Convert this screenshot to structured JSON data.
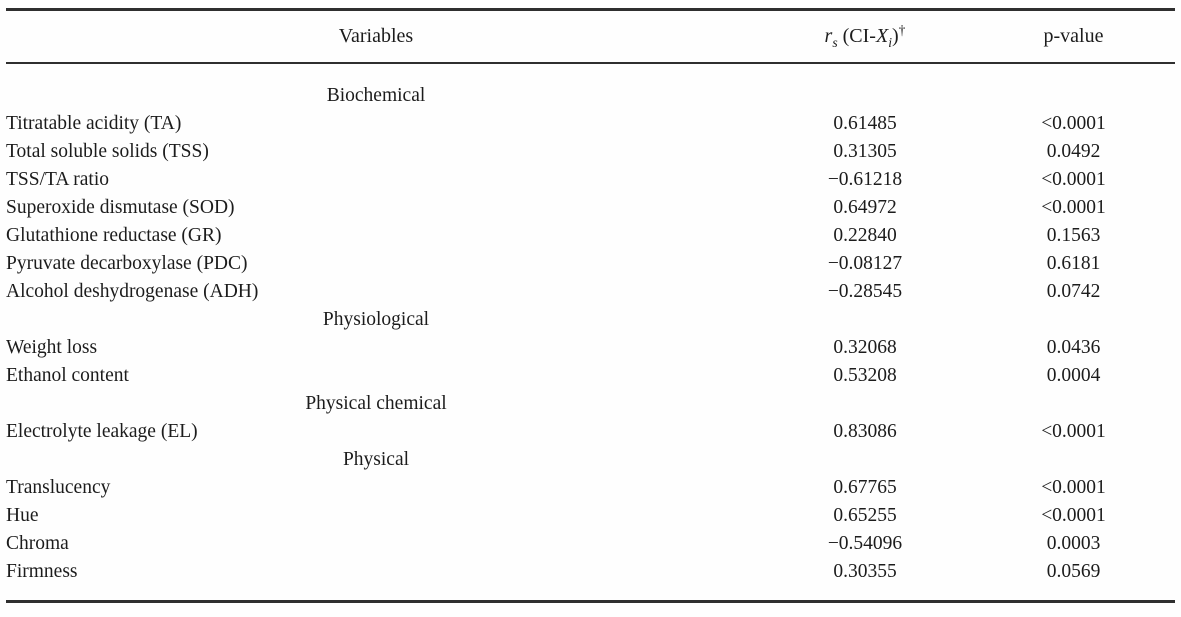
{
  "table": {
    "header": {
      "col1": "Variables",
      "col2": {
        "r": "r",
        "r_sub": "s",
        "open": " (CI-",
        "x": "X",
        "x_sub": "i",
        "close": ")",
        "dagger": "†"
      },
      "col3": "p-value"
    },
    "rows": [
      {
        "type": "section",
        "label": "Biochemical"
      },
      {
        "type": "data",
        "variable": "Titratable acidity (TA)",
        "rs": "0.61485",
        "p": "<0.0001"
      },
      {
        "type": "data",
        "variable": "Total soluble solids (TSS)",
        "rs": "0.31305",
        "p": "0.0492"
      },
      {
        "type": "data",
        "variable": "TSS/TA ratio",
        "rs": "−0.61218",
        "p": "<0.0001"
      },
      {
        "type": "data",
        "variable": "Superoxide dismutase (SOD)",
        "rs": "0.64972",
        "p": "<0.0001"
      },
      {
        "type": "data",
        "variable": "Glutathione reductase (GR)",
        "rs": "0.22840",
        "p": "0.1563"
      },
      {
        "type": "data",
        "variable": "Pyruvate decarboxylase (PDC)",
        "rs": "−0.08127",
        "p": "0.6181"
      },
      {
        "type": "data",
        "variable": "Alcohol deshydrogenase (ADH)",
        "rs": "−0.28545",
        "p": "0.0742"
      },
      {
        "type": "section",
        "label": "Physiological"
      },
      {
        "type": "data",
        "variable": "Weight loss",
        "rs": "0.32068",
        "p": "0.0436"
      },
      {
        "type": "data",
        "variable": "Ethanol content",
        "rs": "0.53208",
        "p": "0.0004"
      },
      {
        "type": "section",
        "label": "Physical chemical"
      },
      {
        "type": "data",
        "variable": "Electrolyte leakage (EL)",
        "rs": "0.83086",
        "p": "<0.0001"
      },
      {
        "type": "section",
        "label": "Physical"
      },
      {
        "type": "data",
        "variable": "Translucency",
        "rs": "0.67765",
        "p": "<0.0001"
      },
      {
        "type": "data",
        "variable": "Hue",
        "rs": "0.65255",
        "p": "<0.0001"
      },
      {
        "type": "data",
        "variable": "Chroma",
        "rs": "−0.54096",
        "p": "0.0003"
      },
      {
        "type": "data",
        "variable": "Firmness",
        "rs": "0.30355",
        "p": "0.0569"
      }
    ]
  }
}
